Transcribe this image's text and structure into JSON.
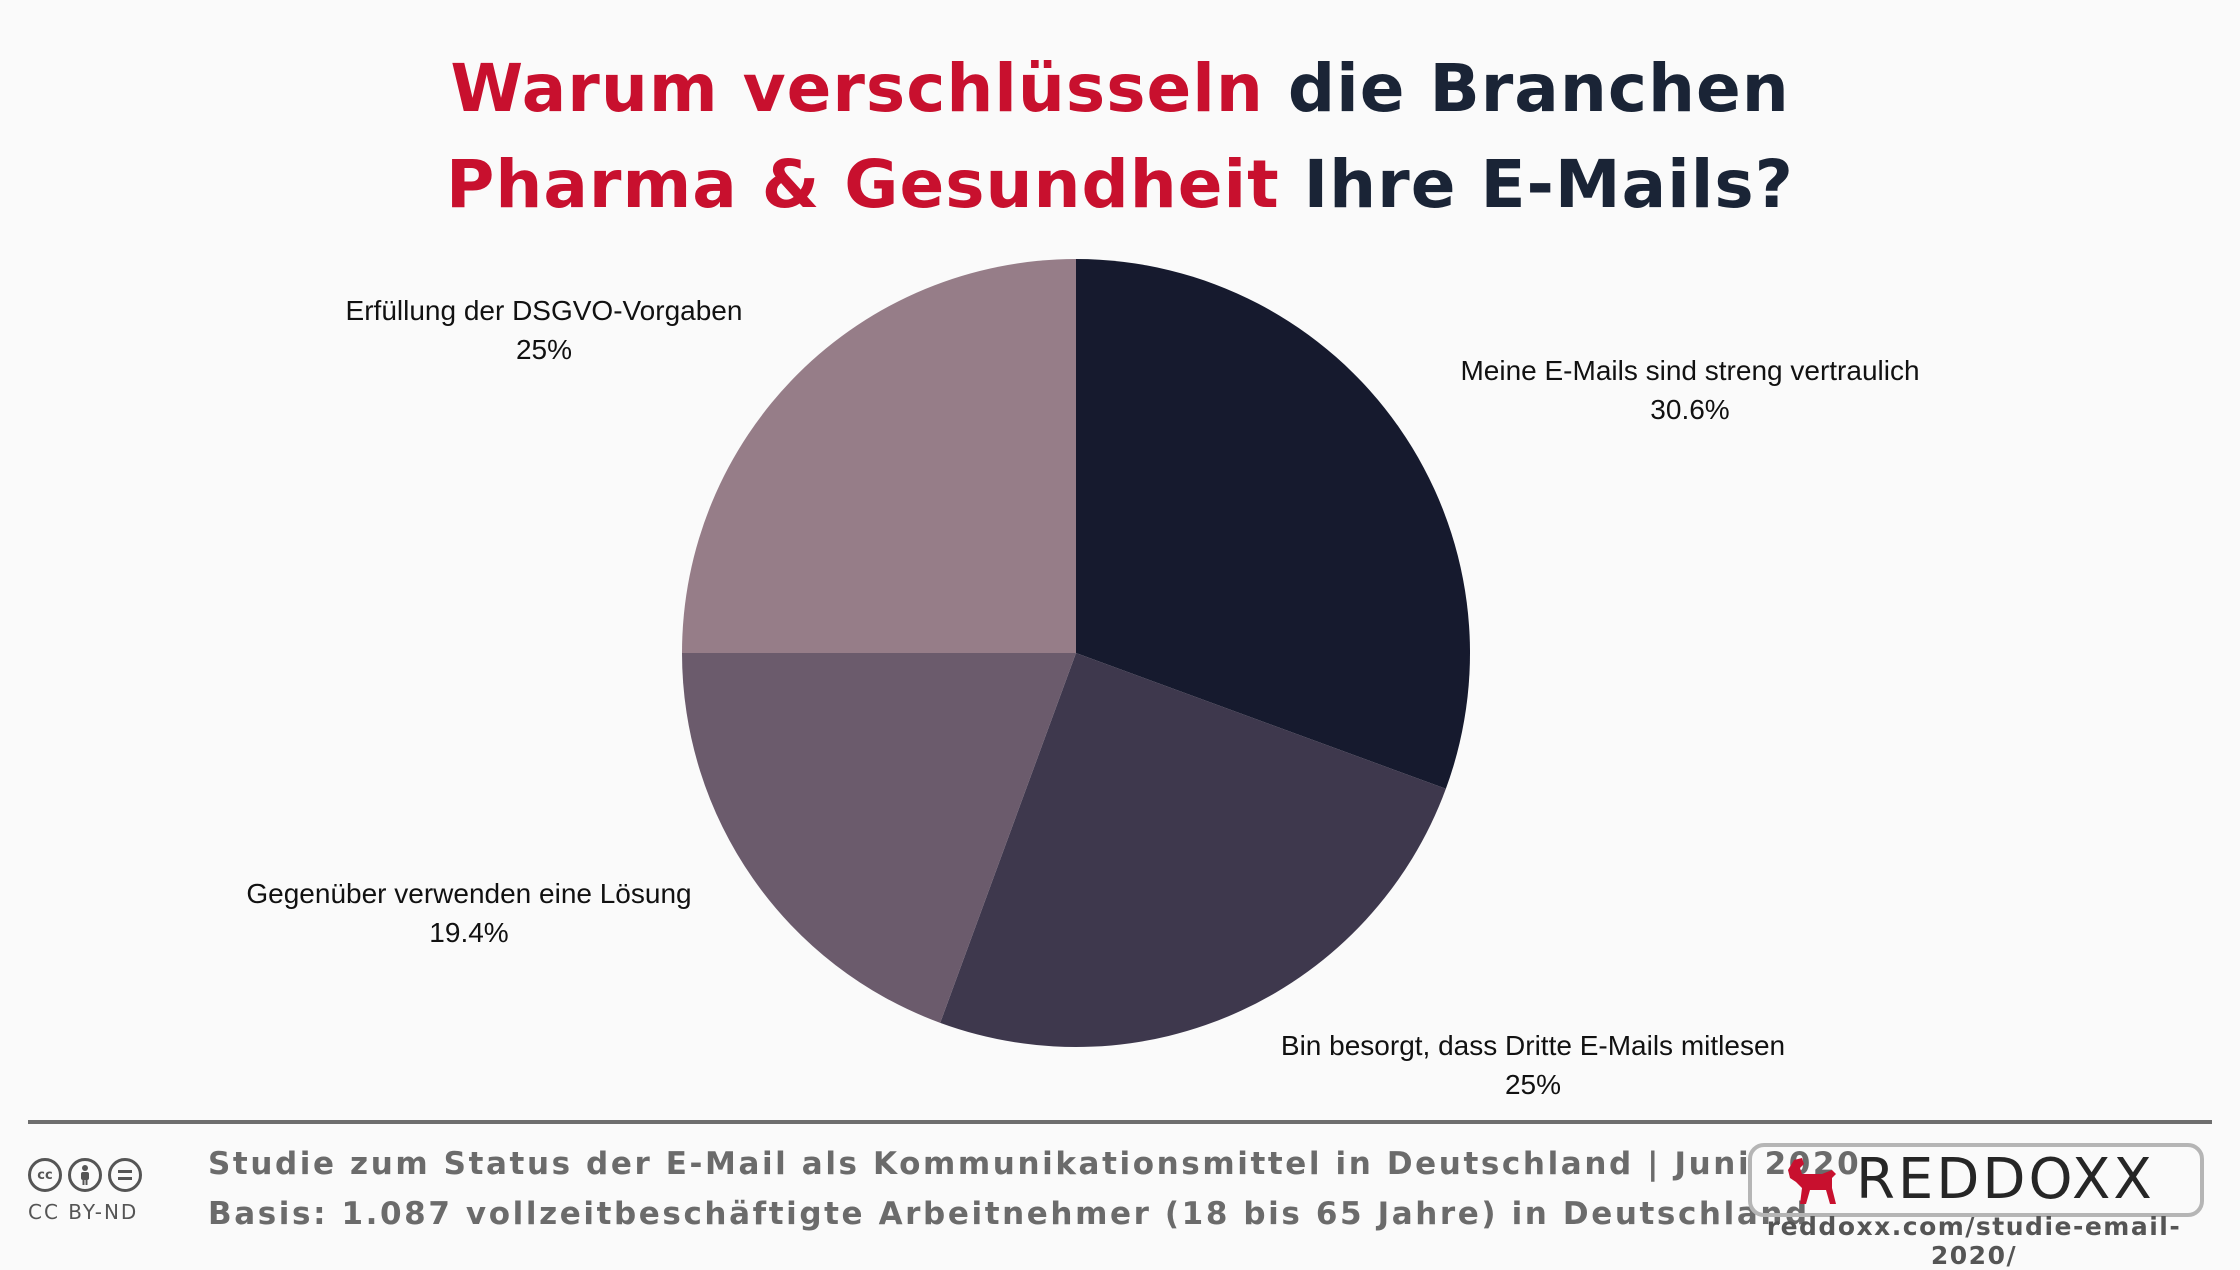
{
  "header": {
    "title_line1_red": "Warum verschlüsseln",
    "title_line1_dark": "die Branchen",
    "title_line2_red": "Pharma & Gesundheit",
    "title_line2_dark": "Ihre E-Mails?"
  },
  "chart_data": {
    "type": "pie",
    "slices": [
      {
        "label": "Meine E-Mails sind streng vertraulich",
        "value": 30.6,
        "value_label": "30.6%",
        "color": "#161a2e"
      },
      {
        "label": "Bin besorgt, dass Dritte E-Mails mitlesen",
        "value": 25,
        "value_label": "25%",
        "color": "#3e384d"
      },
      {
        "label": "Gegenüber verwenden eine Lösung",
        "value": 19.4,
        "value_label": "19.4%",
        "color": "#6b5b6c"
      },
      {
        "label": "Erfüllung der DSGVO-Vorgaben",
        "value": 25,
        "value_label": "25%",
        "color": "#967d88"
      }
    ],
    "start": "12 o'clock",
    "direction": "clockwise",
    "legend": "none"
  },
  "footer": {
    "license": "CC BY-ND",
    "line1": "Studie zum Status der E-Mail als Kommunikationsmittel in Deutschland | Juni 2020",
    "line2": "Basis: 1.087 vollzeitbeschäftigte Arbeitnehmer (18 bis 65 Jahre) in Deutschland",
    "brand": "REDDOXX",
    "url": "reddoxx.com/studie-email-2020/",
    "brand_color": "#c8102e"
  }
}
